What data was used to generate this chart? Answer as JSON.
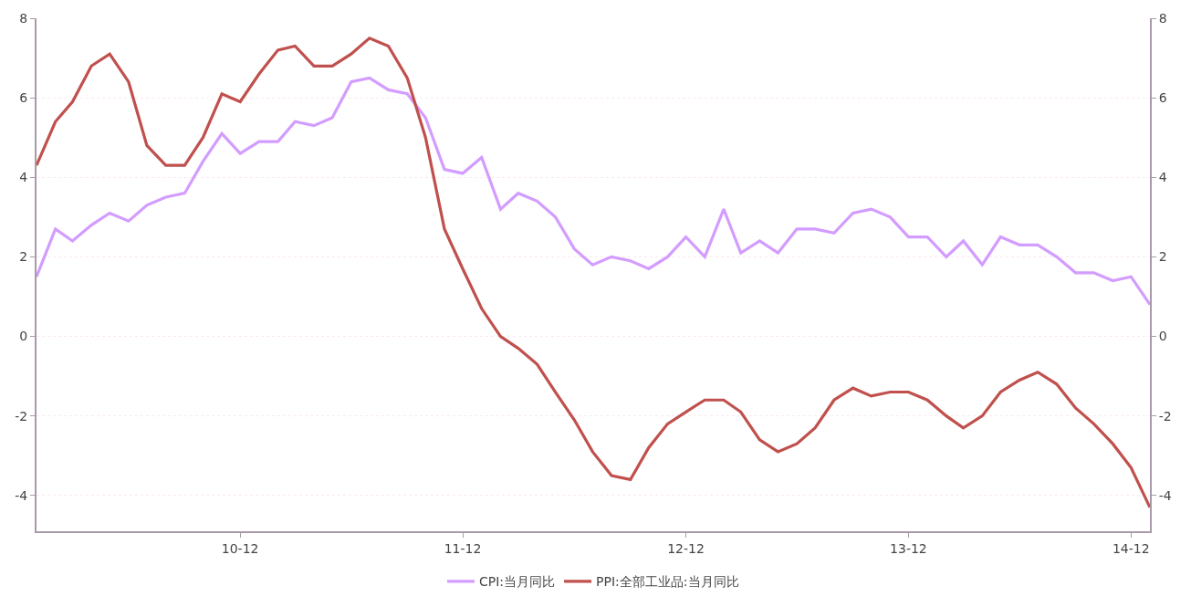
{
  "chart_data": {
    "type": "line",
    "x": [
      "2010-01",
      "2010-02",
      "2010-03",
      "2010-04",
      "2010-05",
      "2010-06",
      "2010-07",
      "2010-08",
      "2010-09",
      "2010-10",
      "2010-11",
      "2010-12",
      "2011-01",
      "2011-02",
      "2011-03",
      "2011-04",
      "2011-05",
      "2011-06",
      "2011-07",
      "2011-08",
      "2011-09",
      "2011-10",
      "2011-11",
      "2011-12",
      "2012-01",
      "2012-02",
      "2012-03",
      "2012-04",
      "2012-05",
      "2012-06",
      "2012-07",
      "2012-08",
      "2012-09",
      "2012-10",
      "2012-11",
      "2012-12",
      "2013-01",
      "2013-02",
      "2013-03",
      "2013-04",
      "2013-05",
      "2013-06",
      "2013-07",
      "2013-08",
      "2013-09",
      "2013-10",
      "2013-11",
      "2013-12",
      "2014-01",
      "2014-02",
      "2014-03",
      "2014-04",
      "2014-05",
      "2014-06",
      "2014-07",
      "2014-08",
      "2014-09",
      "2014-10",
      "2014-11",
      "2014-12",
      "2015-01"
    ],
    "series": [
      {
        "name": "CPI:当月同比",
        "color": "#d39cff",
        "values": [
          1.5,
          2.7,
          2.4,
          2.8,
          3.1,
          2.9,
          3.3,
          3.5,
          3.6,
          4.4,
          5.1,
          4.6,
          4.9,
          4.9,
          5.4,
          5.3,
          5.5,
          6.4,
          6.5,
          6.2,
          6.1,
          5.5,
          4.2,
          4.1,
          4.5,
          3.2,
          3.6,
          3.4,
          3.0,
          2.2,
          1.8,
          2.0,
          1.9,
          1.7,
          2.0,
          2.5,
          2.0,
          3.2,
          2.1,
          2.4,
          2.1,
          2.7,
          2.7,
          2.6,
          3.1,
          3.2,
          3.0,
          2.5,
          2.5,
          2.0,
          2.4,
          1.8,
          2.5,
          2.3,
          2.3,
          2.0,
          1.6,
          1.6,
          1.4,
          1.5,
          0.8
        ]
      },
      {
        "name": "PPI:全部工业品:当月同比",
        "color": "#c0504d",
        "values": [
          4.3,
          5.4,
          5.9,
          6.8,
          7.1,
          6.4,
          4.8,
          4.3,
          4.3,
          5.0,
          6.1,
          5.9,
          6.6,
          7.2,
          7.3,
          6.8,
          6.8,
          7.1,
          7.5,
          7.3,
          6.5,
          5.0,
          2.7,
          1.7,
          0.7,
          0.0,
          -0.3,
          -0.7,
          -1.4,
          -2.1,
          -2.9,
          -3.5,
          -3.6,
          -2.8,
          -2.2,
          -1.9,
          -1.6,
          -1.6,
          -1.9,
          -2.6,
          -2.9,
          -2.7,
          -2.3,
          -1.6,
          -1.3,
          -1.5,
          -1.4,
          -1.4,
          -1.6,
          -2.0,
          -2.3,
          -2.0,
          -1.4,
          -1.1,
          -0.9,
          -1.2,
          -1.8,
          -2.2,
          -2.7,
          -3.3,
          -4.3
        ]
      }
    ],
    "xlim": [
      "2010-01",
      "2015-01"
    ],
    "xticks": [
      {
        "value": "2010-12",
        "label": "10-12"
      },
      {
        "value": "2011-12",
        "label": "11-12"
      },
      {
        "value": "2012-12",
        "label": "12-12"
      },
      {
        "value": "2013-12",
        "label": "13-12"
      },
      {
        "value": "2014-12",
        "label": "14-12"
      }
    ],
    "ylim": [
      -4.9,
      8
    ],
    "yticks": [
      -4,
      -2,
      0,
      2,
      4,
      6,
      8
    ],
    "y2lim": [
      -4.9,
      8
    ],
    "y2ticks": [
      -4,
      -2,
      0,
      2,
      4,
      6,
      8
    ],
    "grid": "y",
    "legend": "bottom",
    "marker": "none",
    "line_style": "solid"
  }
}
